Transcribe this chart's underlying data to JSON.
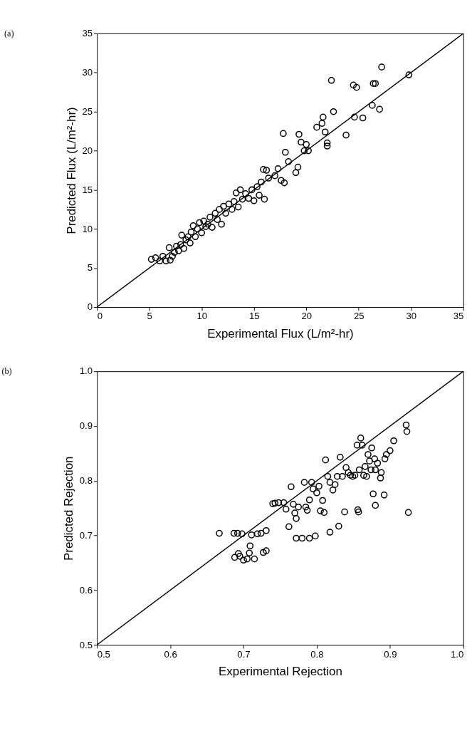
{
  "chart_data": [
    {
      "type": "scatter",
      "annotations": [
        "(a)"
      ],
      "xlabel": "Experimental Flux (L/m²-hr)",
      "ylabel": "Predicted Flux (L/m²-hr)",
      "xlim": [
        0,
        35
      ],
      "ylim": [
        0,
        35
      ],
      "xticks": [
        0,
        5,
        10,
        15,
        20,
        25,
        30,
        35
      ],
      "yticks": [
        0,
        5,
        10,
        15,
        20,
        25,
        30,
        35
      ],
      "grid": false,
      "series": [
        {
          "type": "scatter",
          "marker": "circle",
          "color": "#000000",
          "x": [
            5.2,
            5.6,
            6.0,
            6.3,
            6.6,
            6.9,
            7.0,
            7.2,
            7.4,
            7.6,
            7.8,
            8.0,
            8.1,
            8.3,
            8.5,
            8.7,
            8.9,
            9.0,
            9.2,
            9.4,
            9.6,
            9.8,
            10.0,
            10.2,
            10.4,
            10.6,
            10.8,
            11.0,
            11.3,
            11.5,
            11.7,
            11.9,
            12.1,
            12.3,
            12.6,
            12.9,
            13.1,
            13.3,
            13.5,
            13.7,
            13.9,
            14.2,
            14.5,
            14.8,
            15.0,
            15.3,
            15.5,
            15.7,
            15.9,
            16.0,
            16.2,
            16.4,
            17.0,
            17.3,
            17.6,
            17.8,
            17.9,
            18.0,
            18.3,
            19.0,
            19.2,
            19.3,
            19.5,
            19.8,
            20.0,
            20.2,
            21.0,
            21.5,
            21.6,
            21.8,
            22.0,
            22.0,
            22.4,
            22.6,
            23.8,
            24.5,
            24.8,
            24.6,
            25.4,
            26.3,
            26.4,
            26.6,
            27.0,
            27.2,
            29.8
          ],
          "values": [
            6.1,
            6.3,
            5.9,
            6.5,
            5.9,
            7.6,
            6.0,
            6.5,
            7.0,
            7.8,
            7.2,
            8.0,
            9.2,
            7.5,
            8.6,
            9.0,
            8.2,
            9.6,
            10.4,
            9.0,
            10.0,
            10.8,
            9.5,
            11.0,
            10.3,
            10.6,
            11.5,
            10.2,
            12.0,
            11.2,
            12.5,
            10.6,
            12.9,
            12.0,
            13.2,
            12.5,
            13.5,
            14.6,
            12.8,
            15.0,
            13.8,
            14.5,
            13.9,
            15.0,
            13.6,
            15.4,
            14.3,
            16.0,
            17.6,
            13.8,
            17.5,
            16.5,
            16.8,
            17.7,
            16.2,
            22.2,
            15.9,
            19.8,
            18.6,
            17.2,
            17.9,
            22.1,
            21.1,
            20.0,
            20.8,
            20.0,
            23.0,
            23.5,
            24.3,
            22.4,
            21.0,
            20.6,
            29.0,
            25.0,
            22.0,
            28.4,
            28.1,
            24.3,
            24.2,
            25.8,
            28.6,
            28.6,
            25.3,
            30.7,
            29.7
          ]
        },
        {
          "type": "line",
          "marker": "none",
          "color": "#000000",
          "x": [
            0,
            35
          ],
          "values": [
            0,
            35
          ]
        }
      ]
    },
    {
      "type": "scatter",
      "annotations": [
        "(b)"
      ],
      "xlabel": "Experimental Rejection",
      "ylabel": "Predicted Rejection",
      "xlim": [
        0.5,
        1.0
      ],
      "ylim": [
        0.5,
        1.0
      ],
      "xticks": [
        0.5,
        0.6,
        0.7,
        0.8,
        0.9,
        {
          "value": 1.0,
          "label": "1.0"
        }
      ],
      "yticks": [
        0.5,
        0.6,
        0.7,
        0.8,
        0.9,
        {
          "value": 1.0,
          "label": "1.0"
        }
      ],
      "grid": false,
      "series": [
        {
          "type": "scatter",
          "marker": "circle",
          "color": "#000000",
          "x": [
            0.667,
            0.687,
            0.692,
            0.698,
            0.688,
            0.693,
            0.695,
            0.7,
            0.705,
            0.708,
            0.709,
            0.711,
            0.715,
            0.719,
            0.724,
            0.727,
            0.731,
            0.731,
            0.74,
            0.743,
            0.748,
            0.755,
            0.758,
            0.762,
            0.765,
            0.768,
            0.77,
            0.772,
            0.772,
            0.775,
            0.78,
            0.783,
            0.785,
            0.787,
            0.79,
            0.79,
            0.793,
            0.795,
            0.798,
            0.8,
            0.803,
            0.805,
            0.808,
            0.81,
            0.812,
            0.815,
            0.818,
            0.818,
            0.822,
            0.825,
            0.828,
            0.83,
            0.832,
            0.835,
            0.838,
            0.84,
            0.843,
            0.846,
            0.849,
            0.852,
            0.855,
            0.856,
            0.857,
            0.858,
            0.86,
            0.862,
            0.864,
            0.866,
            0.868,
            0.87,
            0.872,
            0.874,
            0.875,
            0.877,
            0.879,
            0.88,
            0.88,
            0.883,
            0.887,
            0.888,
            0.892,
            0.893,
            0.895,
            0.9,
            0.905,
            0.922,
            0.923,
            0.925
          ],
          "values": [
            0.704,
            0.704,
            0.704,
            0.703,
            0.66,
            0.667,
            0.662,
            0.655,
            0.657,
            0.668,
            0.681,
            0.701,
            0.657,
            0.703,
            0.704,
            0.669,
            0.672,
            0.709,
            0.758,
            0.759,
            0.76,
            0.76,
            0.748,
            0.716,
            0.789,
            0.757,
            0.741,
            0.731,
            0.695,
            0.752,
            0.695,
            0.797,
            0.752,
            0.746,
            0.765,
            0.695,
            0.797,
            0.785,
            0.699,
            0.778,
            0.79,
            0.745,
            0.764,
            0.742,
            0.838,
            0.808,
            0.797,
            0.706,
            0.783,
            0.793,
            0.808,
            0.717,
            0.843,
            0.808,
            0.743,
            0.824,
            0.815,
            0.81,
            0.808,
            0.81,
            0.865,
            0.747,
            0.743,
            0.82,
            0.878,
            0.865,
            0.81,
            0.826,
            0.808,
            0.848,
            0.836,
            0.82,
            0.86,
            0.776,
            0.84,
            0.82,
            0.755,
            0.832,
            0.805,
            0.815,
            0.774,
            0.84,
            0.848,
            0.855,
            0.873,
            0.902,
            0.89,
            0.742
          ]
        },
        {
          "type": "line",
          "marker": "none",
          "color": "#000000",
          "x": [
            0.5,
            1.0
          ],
          "values": [
            0.5,
            1.0
          ]
        }
      ]
    }
  ]
}
